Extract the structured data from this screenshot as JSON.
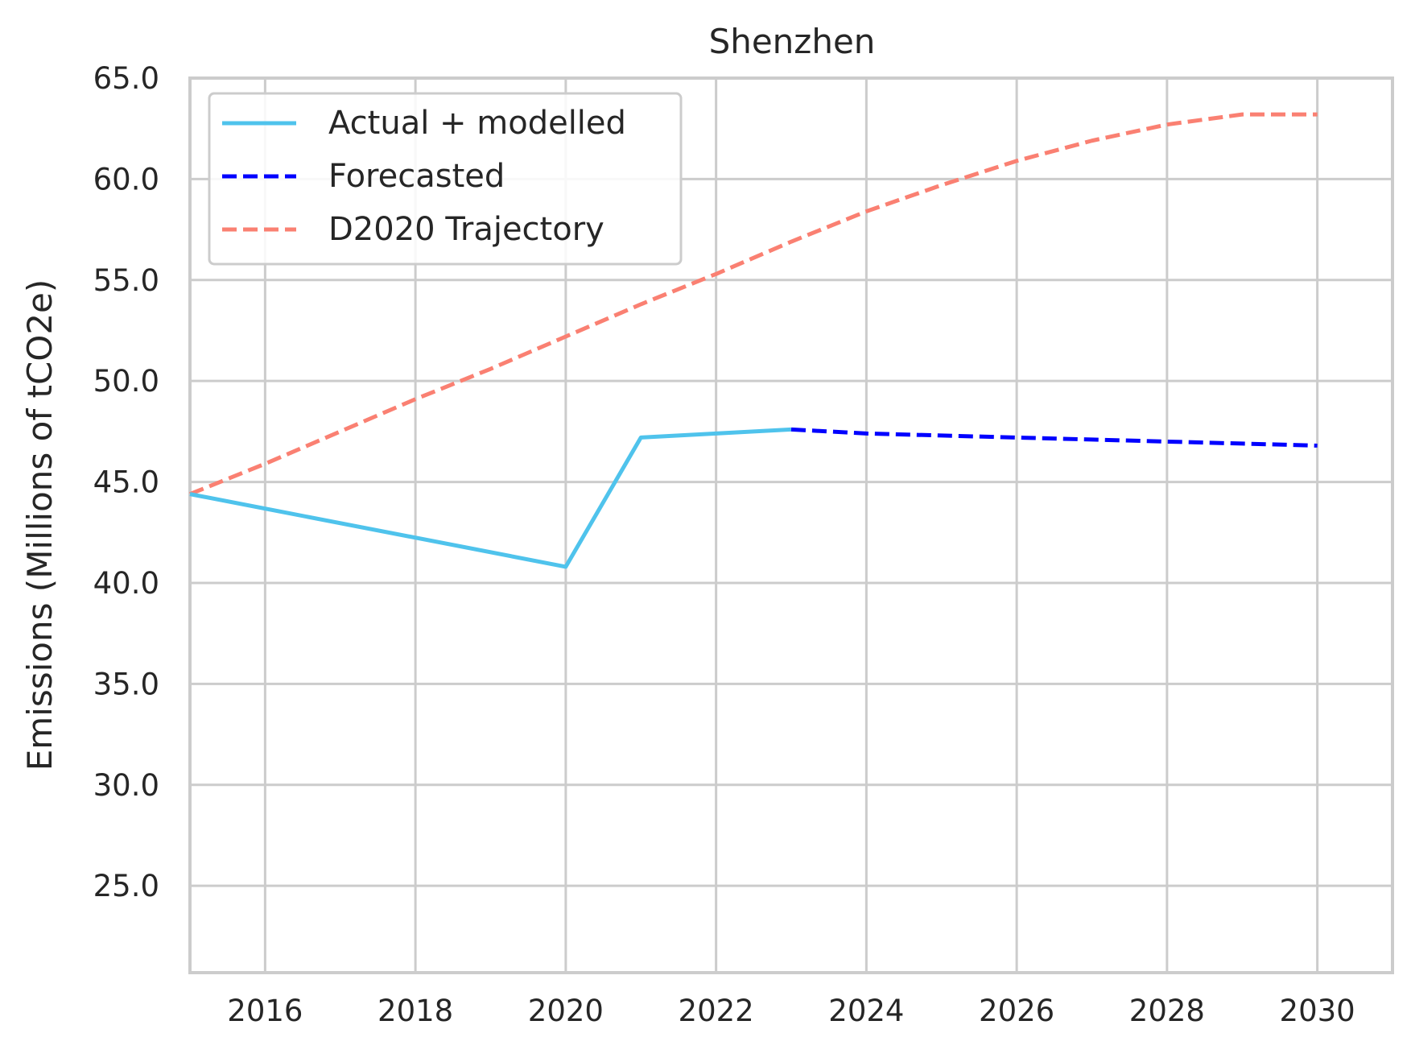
{
  "chart_data": {
    "type": "line",
    "title": "Shenzhen",
    "xlabel": "",
    "ylabel": "Emissions (Millions of tCO2e)",
    "xlim": [
      2015,
      2031
    ],
    "ylim": [
      20.7,
      65.0
    ],
    "x_ticks": [
      "2016",
      "2018",
      "2020",
      "2022",
      "2024",
      "2026",
      "2028",
      "2030"
    ],
    "y_ticks": [
      "25.0",
      "30.0",
      "35.0",
      "40.0",
      "45.0",
      "50.0",
      "55.0",
      "60.0",
      "65.0"
    ],
    "grid": true,
    "legend_position": "top-left",
    "series": [
      {
        "name": "Actual + modelled",
        "style": "solid",
        "color": "#4fc3ec",
        "x": [
          2015,
          2020,
          2021,
          2022,
          2023
        ],
        "values": [
          44.4,
          40.8,
          47.2,
          47.4,
          47.6
        ]
      },
      {
        "name": "Forecasted",
        "style": "dashed",
        "color": "#0000ff",
        "x": [
          2023,
          2024,
          2025,
          2026,
          2027,
          2028,
          2029,
          2030
        ],
        "values": [
          47.6,
          47.4,
          47.3,
          47.2,
          47.1,
          47.0,
          46.9,
          46.8
        ]
      },
      {
        "name": "D2020 Trajectory",
        "style": "dashed",
        "color": "#fa8072",
        "x": [
          2015,
          2016,
          2017,
          2018,
          2019,
          2020,
          2021,
          2022,
          2023,
          2024,
          2025,
          2026,
          2027,
          2028,
          2029,
          2030
        ],
        "values": [
          44.4,
          45.9,
          47.5,
          49.1,
          50.6,
          52.2,
          53.8,
          55.3,
          56.9,
          58.4,
          59.7,
          60.9,
          61.9,
          62.7,
          63.2,
          63.2
        ]
      }
    ]
  }
}
